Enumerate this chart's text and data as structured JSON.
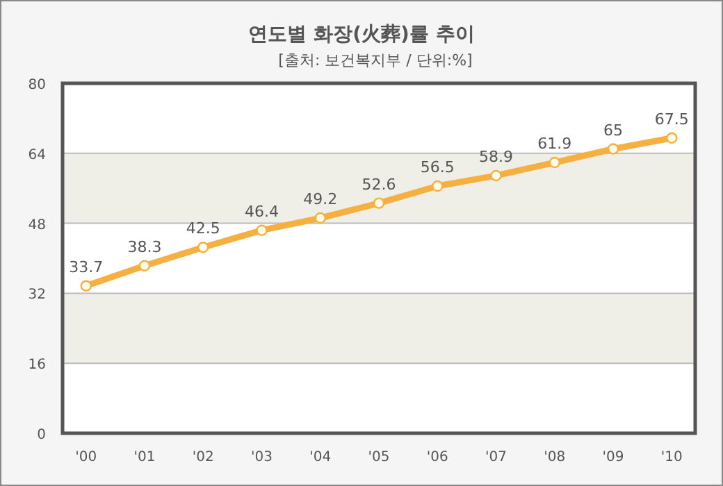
{
  "chart_data": {
    "type": "line",
    "title": "연도별 화장(火葬)률 추이",
    "subtitle": "[출처: 보건복지부 / 단위:%]",
    "categories": [
      "'00",
      "'01",
      "'02",
      "'03",
      "'04",
      "'05",
      "'06",
      "'07",
      "'08",
      "'09",
      "'10"
    ],
    "series": [
      {
        "color": "#f5b041",
        "values": [
          33.7,
          38.3,
          42.5,
          46.4,
          49.2,
          52.6,
          56.5,
          58.9,
          61.9,
          65,
          67.5
        ]
      }
    ],
    "ylim": [
      0,
      80
    ],
    "yticks": [
      0,
      16,
      32,
      48,
      64,
      80
    ],
    "grid": "y",
    "marker": "circle",
    "line_style": "solid",
    "data_labels": true,
    "bands": [
      {
        "axis": "y",
        "from": 16,
        "to": 32,
        "color": "#efefe7"
      },
      {
        "axis": "y",
        "from": 48,
        "to": 64,
        "color": "#efefe7"
      }
    ]
  }
}
